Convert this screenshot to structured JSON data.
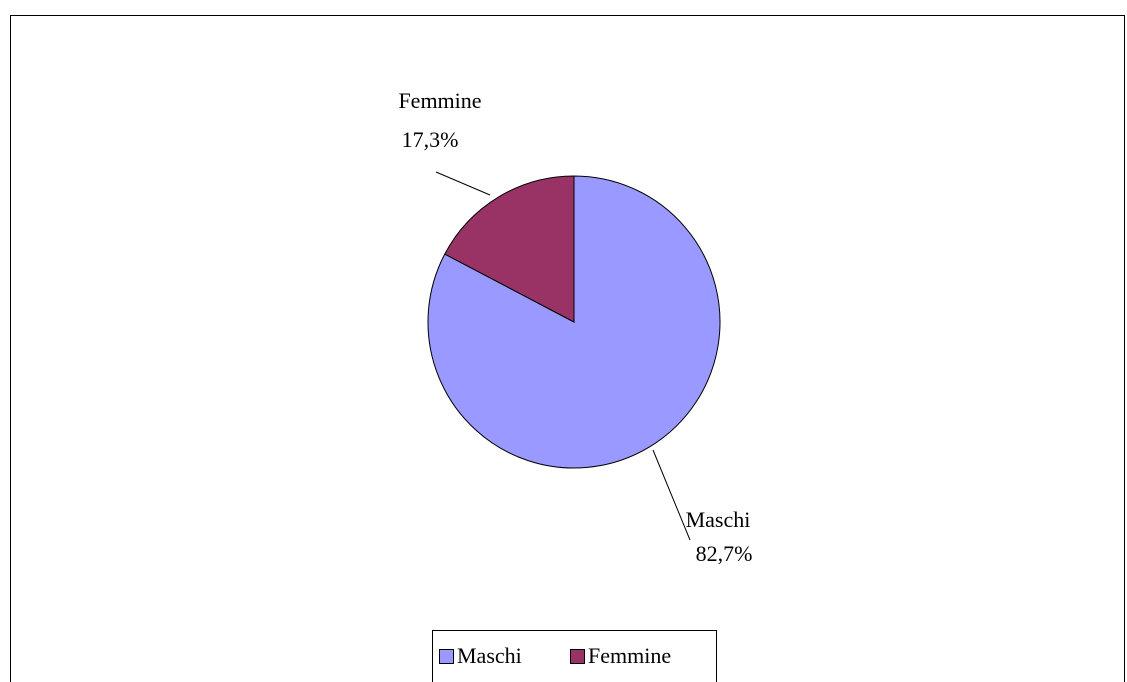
{
  "chart_data": {
    "type": "pie",
    "categories": [
      "Maschi",
      "Femmine"
    ],
    "values": [
      82.7,
      17.3
    ],
    "value_labels": [
      "82,7%",
      "17,3%"
    ],
    "colors": [
      "#9999ff",
      "#993366"
    ],
    "legend": "bottom"
  }
}
